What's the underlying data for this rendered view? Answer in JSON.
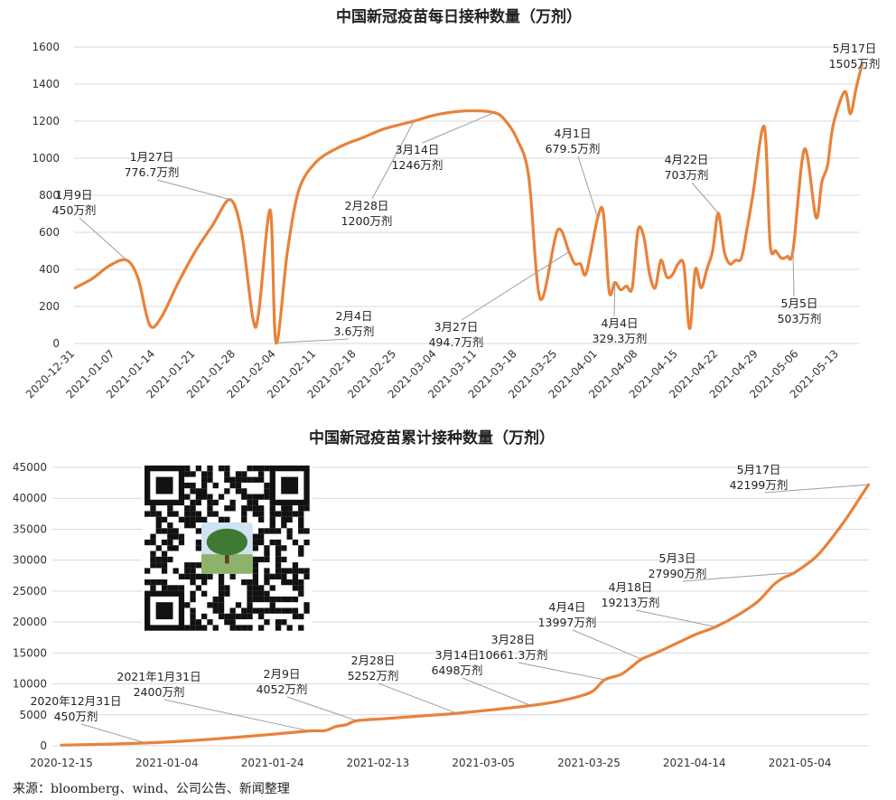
{
  "accent_color": "#E8823A",
  "source_text": "来源：bloomberg、wind、公司公告、新闻整理",
  "qr_code": {
    "icon": "qr-code-icon",
    "caption": ""
  },
  "chart_data": [
    {
      "type": "line",
      "title": "中国新冠疫苗每日接种数量（万剂）",
      "xlabel": "",
      "ylabel": "",
      "ylim": [
        0,
        1600
      ],
      "yticks": [
        0,
        200,
        400,
        600,
        800,
        1000,
        1200,
        1400,
        1600
      ],
      "x_tick_labels": [
        "2020-12-31",
        "2021-01-07",
        "2021-01-14",
        "2021-01-21",
        "2021-01-28",
        "2021-02-04",
        "2021-02-11",
        "2021-02-18",
        "2021-02-25",
        "2021-03-04",
        "2021-03-11",
        "2021-03-18",
        "2021-03-25",
        "2021-04-01",
        "2021-04-08",
        "2021-04-15",
        "2021-04-22",
        "2021-04-29",
        "2021-05-06",
        "2021-05-13"
      ],
      "grid": true,
      "series": [
        {
          "color": "#E8823A",
          "points": [
            [
              "2020-12-31",
              300
            ],
            [
              "2021-01-03",
              350
            ],
            [
              "2021-01-06",
              420
            ],
            [
              "2021-01-09",
              450
            ],
            [
              "2021-01-11",
              350
            ],
            [
              "2021-01-13",
              100
            ],
            [
              "2021-01-15",
              140
            ],
            [
              "2021-01-18",
              330
            ],
            [
              "2021-01-21",
              500
            ],
            [
              "2021-01-24",
              640
            ],
            [
              "2021-01-27",
              776.7
            ],
            [
              "2021-01-29",
              600
            ],
            [
              "2021-01-31",
              130
            ],
            [
              "2021-02-01",
              170
            ],
            [
              "2021-02-03",
              720
            ],
            [
              "2021-02-04",
              3.6
            ],
            [
              "2021-02-06",
              500
            ],
            [
              "2021-02-08",
              830
            ],
            [
              "2021-02-11",
              980
            ],
            [
              "2021-02-15",
              1060
            ],
            [
              "2021-02-19",
              1110
            ],
            [
              "2021-02-23",
              1160
            ],
            [
              "2021-02-28",
              1200
            ],
            [
              "2021-03-04",
              1235
            ],
            [
              "2021-03-09",
              1255
            ],
            [
              "2021-03-14",
              1246
            ],
            [
              "2021-03-16",
              1200
            ],
            [
              "2021-03-18",
              1100
            ],
            [
              "2021-03-20",
              900
            ],
            [
              "2021-03-22",
              240
            ],
            [
              "2021-03-25",
              610
            ],
            [
              "2021-03-27",
              494.7
            ],
            [
              "2021-03-28",
              430
            ],
            [
              "2021-03-29",
              430
            ],
            [
              "2021-03-30",
              380
            ],
            [
              "2021-04-01",
              679.5
            ],
            [
              "2021-04-02",
              700
            ],
            [
              "2021-04-03",
              280
            ],
            [
              "2021-04-04",
              329.3
            ],
            [
              "2021-04-05",
              290
            ],
            [
              "2021-04-06",
              310
            ],
            [
              "2021-04-07",
              300
            ],
            [
              "2021-04-08",
              610
            ],
            [
              "2021-04-09",
              580
            ],
            [
              "2021-04-10",
              380
            ],
            [
              "2021-04-11",
              300
            ],
            [
              "2021-04-12",
              450
            ],
            [
              "2021-04-13",
              360
            ],
            [
              "2021-04-14",
              370
            ],
            [
              "2021-04-15",
              430
            ],
            [
              "2021-04-16",
              420
            ],
            [
              "2021-04-17",
              80
            ],
            [
              "2021-04-18",
              400
            ],
            [
              "2021-04-19",
              300
            ],
            [
              "2021-04-20",
              400
            ],
            [
              "2021-04-21",
              500
            ],
            [
              "2021-04-22",
              703
            ],
            [
              "2021-04-23",
              500
            ],
            [
              "2021-04-24",
              430
            ],
            [
              "2021-04-25",
              450
            ],
            [
              "2021-04-26",
              460
            ],
            [
              "2021-04-27",
              620
            ],
            [
              "2021-04-28",
              800
            ],
            [
              "2021-04-30",
              1170
            ],
            [
              "2021-05-01",
              540
            ],
            [
              "2021-05-02",
              500
            ],
            [
              "2021-05-03",
              460
            ],
            [
              "2021-05-04",
              470
            ],
            [
              "2021-05-05",
              503
            ],
            [
              "2021-05-07",
              1050
            ],
            [
              "2021-05-09",
              680
            ],
            [
              "2021-05-10",
              870
            ],
            [
              "2021-05-11",
              960
            ],
            [
              "2021-05-12",
              1180
            ],
            [
              "2021-05-14",
              1360
            ],
            [
              "2021-05-15",
              1240
            ],
            [
              "2021-05-16",
              1380
            ],
            [
              "2021-05-17",
              1505
            ]
          ]
        }
      ],
      "annotations": [
        {
          "date": "2021-01-09",
          "value": 450,
          "lines": [
            "1月9日",
            "450万剂"
          ]
        },
        {
          "date": "2021-01-27",
          "value": 776.7,
          "lines": [
            "1月27日",
            "776.7万剂"
          ]
        },
        {
          "date": "2021-02-04",
          "value": 3.6,
          "lines": [
            "2月4日",
            "3.6万剂"
          ]
        },
        {
          "date": "2021-02-28",
          "value": 1200,
          "lines": [
            "2月28日",
            "1200万剂"
          ]
        },
        {
          "date": "2021-03-14",
          "value": 1246,
          "lines": [
            "3月14日",
            "1246万剂"
          ]
        },
        {
          "date": "2021-03-27",
          "value": 494.7,
          "lines": [
            "3月27日",
            "494.7万剂"
          ]
        },
        {
          "date": "2021-04-01",
          "value": 679.5,
          "lines": [
            "4月1日",
            "679.5万剂"
          ]
        },
        {
          "date": "2021-04-04",
          "value": 329.3,
          "lines": [
            "4月4日",
            "329.3万剂"
          ]
        },
        {
          "date": "2021-04-22",
          "value": 703,
          "lines": [
            "4月22日",
            "703万剂"
          ]
        },
        {
          "date": "2021-05-05",
          "value": 503,
          "lines": [
            "5月5日",
            "503万剂"
          ]
        },
        {
          "date": "2021-05-17",
          "value": 1505,
          "lines": [
            "5月17日",
            "1505万剂"
          ]
        }
      ]
    },
    {
      "type": "line",
      "title": "中国新冠疫苗累计接种数量（万剂）",
      "xlabel": "",
      "ylabel": "",
      "ylim": [
        0,
        45000
      ],
      "yticks": [
        0,
        5000,
        10000,
        15000,
        20000,
        25000,
        30000,
        35000,
        40000,
        45000
      ],
      "x_tick_labels": [
        "2020-12-15",
        "2021-01-04",
        "2021-01-24",
        "2021-02-13",
        "2021-03-05",
        "2021-03-25",
        "2021-04-14",
        "2021-05-04"
      ],
      "grid": true,
      "series": [
        {
          "color": "#E8823A",
          "points": [
            [
              "2020-12-15",
              100
            ],
            [
              "2020-12-23",
              250
            ],
            [
              "2020-12-31",
              450
            ],
            [
              "2021-01-08",
              800
            ],
            [
              "2021-01-16",
              1300
            ],
            [
              "2021-01-24",
              1850
            ],
            [
              "2021-01-31",
              2400
            ],
            [
              "2021-02-03",
              2450
            ],
            [
              "2021-02-05",
              3100
            ],
            [
              "2021-02-07",
              3400
            ],
            [
              "2021-02-09",
              4052
            ],
            [
              "2021-02-14",
              4350
            ],
            [
              "2021-02-21",
              4800
            ],
            [
              "2021-02-28",
              5252
            ],
            [
              "2021-03-07",
              5850
            ],
            [
              "2021-03-14",
              6498
            ],
            [
              "2021-03-19",
              7150
            ],
            [
              "2021-03-24",
              8200
            ],
            [
              "2021-03-26",
              9000
            ],
            [
              "2021-03-28",
              10661.3
            ],
            [
              "2021-03-31",
              11500
            ],
            [
              "2021-04-02",
              12700
            ],
            [
              "2021-04-04",
              13997
            ],
            [
              "2021-04-07",
              15100
            ],
            [
              "2021-04-10",
              16300
            ],
            [
              "2021-04-14",
              17900
            ],
            [
              "2021-04-18",
              19213
            ],
            [
              "2021-04-22",
              21000
            ],
            [
              "2021-04-26",
              23300
            ],
            [
              "2021-04-29",
              26000
            ],
            [
              "2021-05-01",
              27200
            ],
            [
              "2021-05-03",
              27990
            ],
            [
              "2021-05-07",
              30500
            ],
            [
              "2021-05-10",
              33500
            ],
            [
              "2021-05-13",
              37000
            ],
            [
              "2021-05-17",
              42199
            ]
          ]
        }
      ],
      "annotations": [
        {
          "date": "2020-12-31",
          "value": 450,
          "lines": [
            "2020年12月31日",
            "450万剂"
          ]
        },
        {
          "date": "2021-01-31",
          "value": 2400,
          "lines": [
            "2021年1月31日",
            "2400万剂"
          ]
        },
        {
          "date": "2021-02-09",
          "value": 4052,
          "lines": [
            "2月9日",
            "4052万剂"
          ]
        },
        {
          "date": "2021-02-28",
          "value": 5252,
          "lines": [
            "2月28日",
            "5252万剂"
          ]
        },
        {
          "date": "2021-03-14",
          "value": 6498,
          "lines": [
            "3月14日",
            "6498万剂"
          ]
        },
        {
          "date": "2021-03-28",
          "value": 10661.3,
          "lines": [
            "3月28日",
            "10661.3万剂"
          ]
        },
        {
          "date": "2021-04-04",
          "value": 13997,
          "lines": [
            "4月4日",
            "13997万剂"
          ]
        },
        {
          "date": "2021-04-18",
          "value": 19213,
          "lines": [
            "4月18日",
            "19213万剂"
          ]
        },
        {
          "date": "2021-05-03",
          "value": 27990,
          "lines": [
            "5月3日",
            "27990万剂"
          ]
        },
        {
          "date": "2021-05-17",
          "value": 42199,
          "lines": [
            "5月17日",
            "42199万剂"
          ]
        }
      ]
    }
  ]
}
